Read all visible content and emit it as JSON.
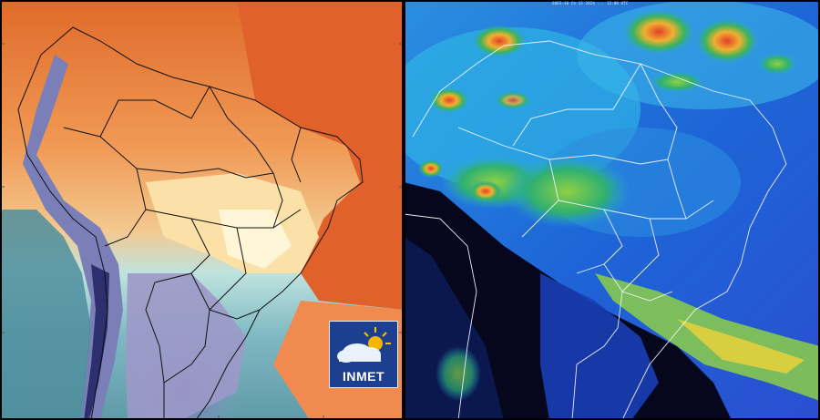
{
  "left_map": {
    "logo_text": "INMET",
    "logo_icon": "sun-cloud-icon"
  },
  "right_map": {
    "header_text": "GOES-16 Ch 13 2024 ... 12:00 UTC"
  },
  "colors": {
    "ocean_orange": "#e0622a",
    "warm_orange": "#f6a55c",
    "cold_violet": "#6d6ea8",
    "sat_blue": "#1e5fd6",
    "sat_black": "#05061a",
    "storm_red": "#d43a1a"
  }
}
